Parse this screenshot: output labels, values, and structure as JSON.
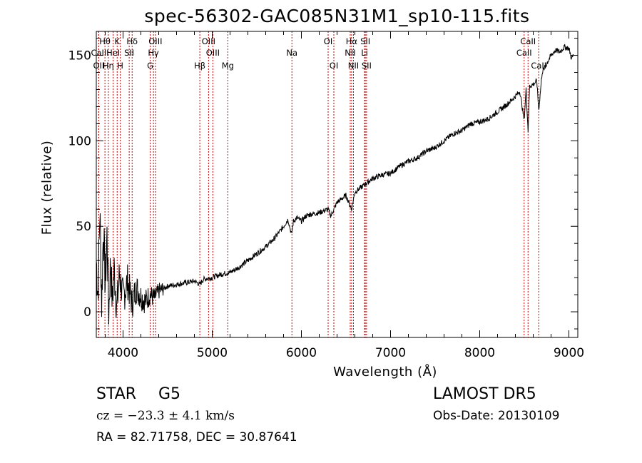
{
  "header": {
    "title": "spec-56302-GAC085N31M1_sp10-115.fits"
  },
  "info": {
    "class_label": "STAR",
    "subclass": "G5",
    "survey": "LAMOST DR5",
    "cz": "cz = −23.3 ± 4.1 km/s",
    "obs_date": "Obs-Date: 20130109",
    "coords": "RA =  82.71758, DEC =  30.87641"
  },
  "chart_data": {
    "type": "line",
    "title": "spec-56302-GAC085N31M1_sp10-115.fits",
    "xlabel": "Wavelength (Å)",
    "ylabel": "Flux (relative)",
    "xlim": [
      3700,
      9100
    ],
    "ylim": [
      -15,
      164
    ],
    "x_ticks": [
      4000,
      5000,
      6000,
      7000,
      8000,
      9000
    ],
    "y_ticks": [
      0,
      50,
      100,
      150
    ],
    "grid": false,
    "series": [
      {
        "x": [
          3700,
          3720,
          3740,
          3760,
          3780,
          3800,
          3820,
          3840,
          3860,
          3880,
          3900,
          3930,
          3960,
          4000,
          4050,
          4100,
          4150,
          4200,
          4250,
          4300,
          4350,
          4400,
          4500,
          4600,
          4700,
          4800,
          4861,
          4900,
          5000,
          5100,
          5200,
          5300,
          5400,
          5500,
          5600,
          5700,
          5800,
          5850,
          5890,
          5910,
          5950,
          6000,
          6050,
          6100,
          6200,
          6300,
          6330,
          6400,
          6500,
          6563,
          6600,
          6700,
          6800,
          6900,
          7000,
          7100,
          7200,
          7300,
          7400,
          7500,
          7600,
          7700,
          7800,
          7900,
          8000,
          8100,
          8200,
          8300,
          8400,
          8450,
          8498,
          8520,
          8542,
          8560,
          8600,
          8640,
          8662,
          8700,
          8750,
          8800,
          8850,
          8900,
          8950,
          9000,
          9030,
          9050
        ],
        "y": [
          30,
          10,
          60,
          5,
          50,
          15,
          45,
          0,
          30,
          5,
          25,
          2,
          22,
          8,
          18,
          5,
          14,
          9,
          6,
          10,
          8,
          12,
          15,
          16,
          17,
          18,
          16,
          19,
          20,
          22,
          23,
          26,
          30,
          34,
          38,
          43,
          50,
          54,
          45,
          53,
          55,
          53,
          56,
          57,
          58,
          60,
          56,
          64,
          68,
          60,
          70,
          74,
          78,
          80,
          81,
          85,
          88,
          90,
          94,
          96,
          100,
          104,
          106,
          110,
          111,
          113,
          117,
          121,
          126,
          129,
          112,
          130,
          106,
          132,
          133,
          135,
          118,
          140,
          145,
          150,
          153,
          152,
          155,
          154,
          148,
          150
        ]
      }
    ],
    "emission_lines": [
      {
        "label": "Hθ",
        "x": 3797,
        "row": 1
      },
      {
        "label": "OII",
        "x": 3727,
        "row": 3
      },
      {
        "label": "CaII",
        "x": 3727,
        "row": 2
      },
      {
        "label": "HeI",
        "x": 3889,
        "row": 2
      },
      {
        "label": "Hη",
        "x": 3835,
        "row": 3
      },
      {
        "label": "K",
        "x": 3934,
        "row": 1
      },
      {
        "label": "H",
        "x": 3969,
        "row": 3
      },
      {
        "label": "Hδ",
        "x": 4102,
        "row": 1
      },
      {
        "label": "SII",
        "x": 4069,
        "row": 2
      },
      {
        "label": "OIII",
        "x": 4363,
        "row": 1
      },
      {
        "label": "Hγ",
        "x": 4341,
        "row": 2
      },
      {
        "label": "G",
        "x": 4305,
        "row": 3
      },
      {
        "label": "Hβ",
        "x": 4861,
        "row": 3
      },
      {
        "label": "OIII",
        "x": 4959,
        "row": 1
      },
      {
        "label": "OIII",
        "x": 5007,
        "row": 2
      },
      {
        "label": "Mg",
        "x": 5175,
        "row": 3
      },
      {
        "label": "Na",
        "x": 5894,
        "row": 2
      },
      {
        "label": "OI",
        "x": 6300,
        "row": 1
      },
      {
        "label": "OI",
        "x": 6364,
        "row": 3
      },
      {
        "label": "Hα",
        "x": 6563,
        "row": 1
      },
      {
        "label": "NII",
        "x": 6548,
        "row": 2
      },
      {
        "label": "NII",
        "x": 6584,
        "row": 3
      },
      {
        "label": "SII",
        "x": 6717,
        "row": 1
      },
      {
        "label": "Li",
        "x": 6708,
        "row": 2
      },
      {
        "label": "SII",
        "x": 6731,
        "row": 3
      },
      {
        "label": "CaII",
        "x": 8542,
        "row": 1
      },
      {
        "label": "CaII",
        "x": 8498,
        "row": 2
      },
      {
        "label": "CaII",
        "x": 8662,
        "row": 3
      }
    ],
    "colors": {
      "spectrum": "#000000",
      "line_markers": "#cc0000",
      "axes": "#000000"
    }
  }
}
